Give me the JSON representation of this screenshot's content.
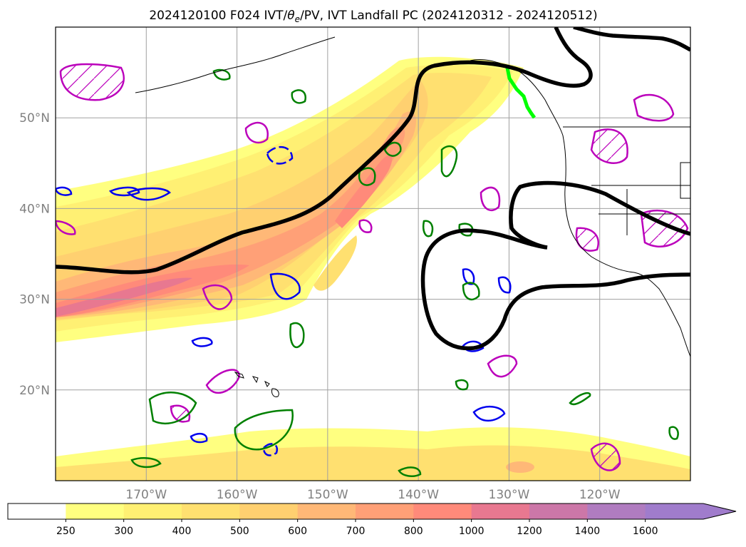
{
  "title": {
    "text_before": "2024120100 F024 IVT/",
    "text_theta": "θ",
    "text_sub": "e",
    "text_after": "/PV, IVT Landfall PC (2024120312 - 2024120512)"
  },
  "map": {
    "extent": {
      "lon_min": -180,
      "lon_max": -110,
      "lat_min": 10,
      "lat_max": 60
    },
    "lon_ticks": [
      {
        "lon": -170,
        "label": "170°W"
      },
      {
        "lon": -160,
        "label": "160°W"
      },
      {
        "lon": -150,
        "label": "150°W"
      },
      {
        "lon": -140,
        "label": "140°W"
      },
      {
        "lon": -130,
        "label": "130°W"
      },
      {
        "lon": -120,
        "label": "120°W"
      }
    ],
    "lat_ticks": [
      {
        "lat": 50,
        "label": "50°N"
      },
      {
        "lat": 40,
        "label": "40°N"
      },
      {
        "lat": 30,
        "label": "30°N"
      },
      {
        "lat": 20,
        "label": "20°N"
      }
    ],
    "grid": true,
    "fields": [
      "IVT (shaded)",
      "theta_e (black)",
      "PV (contours)",
      "IVT landfall (green line)"
    ]
  },
  "colorbar": {
    "extend": "max",
    "boundaries": [
      250,
      300,
      400,
      500,
      600,
      700,
      800,
      1000,
      1200,
      1400,
      1600
    ],
    "labels": [
      "250",
      "300",
      "400",
      "500",
      "600",
      "700",
      "800",
      "1000",
      "1200",
      "1400",
      "1600"
    ],
    "colors": [
      "#ffffff",
      "#ffff80",
      "#fff073",
      "#ffe070",
      "#ffd070",
      "#ffb877",
      "#ffa077",
      "#ff8a7a",
      "#e87890",
      "#cc77a8",
      "#b07cc0",
      "#a07ccc"
    ]
  },
  "colors": {
    "theta_e": "#000000",
    "pv_green": "#008000",
    "pv_blue": "#0000ee",
    "pv_magenta": "#bb00bb",
    "landfall": "#00ff00",
    "grid": "#a0a0a0"
  }
}
